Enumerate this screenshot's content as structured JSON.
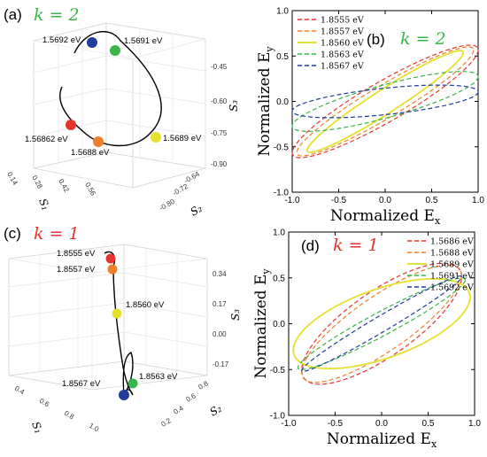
{
  "colors": {
    "red": "#e8332a",
    "orange": "#f07f2a",
    "yellow": "#e6e02f",
    "green": "#39b54a",
    "blue": "#1f3d9a",
    "k_green": "#39b54a",
    "k_red": "#e8332a"
  },
  "panels": [
    {
      "letter": "(a)",
      "k_label": "k = 2",
      "k_color": "#39b54a",
      "axis_labels": {
        "s1": "S₁",
        "s2": "S₂",
        "s3": "S₃"
      },
      "s3_ticks": [
        "-0.45",
        "-0.60",
        "-0.75",
        "-0.90"
      ],
      "s2_ticks": [
        "-0.64",
        "-0.72",
        "-0.80"
      ],
      "s1_ticks": [
        "0.14",
        "0.28",
        "0.42",
        "0.56"
      ],
      "points": [
        {
          "label": "1.5692 eV",
          "color": "blue"
        },
        {
          "label": "1.5691 eV",
          "color": "green"
        },
        {
          "label": "1.56862 eV",
          "color": "red"
        },
        {
          "label": "1.5688 eV",
          "color": "orange"
        },
        {
          "label": "1.5689 eV",
          "color": "yellow"
        }
      ]
    },
    {
      "letter": "(c)",
      "k_label": "k = 1",
      "k_color": "#e8332a",
      "axis_labels": {
        "s1": "S₁",
        "s2": "S₂",
        "s3": "S₃"
      },
      "s3_ticks": [
        "0.34",
        "0.17",
        "0.00",
        "-0.17"
      ],
      "s2_ticks": [
        "0.8",
        "0.6",
        "0.4",
        "0.2"
      ],
      "s1_ticks": [
        "0.4",
        "0.6",
        "0.8",
        "1.0"
      ],
      "points": [
        {
          "label": "1.8555 eV",
          "color": "red"
        },
        {
          "label": "1.8557 eV",
          "color": "orange"
        },
        {
          "label": "1.8560 eV",
          "color": "yellow"
        },
        {
          "label": "1.8563 eV",
          "color": "green"
        },
        {
          "label": "1.8567 eV",
          "color": "blue"
        }
      ]
    }
  ],
  "chart_data": [
    {
      "type": "line",
      "panel": "(b)",
      "k_label": "k = 2",
      "k_color": "#39b54a",
      "xlabel": "Normalized E",
      "xlabel_sub": "x",
      "ylabel": "Normalized E",
      "ylabel_sub": "y",
      "xlim": [
        -1.0,
        1.0
      ],
      "ylim": [
        -1.0,
        1.0
      ],
      "xticks": [
        "-1.0",
        "-0.5",
        "0.0",
        "0.5",
        "1.0"
      ],
      "yticks": [
        "1.0",
        "0.5",
        "0.0",
        "-0.5",
        "-1.0"
      ],
      "legend_position": "top-left",
      "series": [
        {
          "name": "1.8555 eV",
          "color": "red",
          "dash": true,
          "a": 1.0,
          "b": 0.62,
          "delta": 0.42
        },
        {
          "name": "1.8557 eV",
          "color": "orange",
          "dash": true,
          "a": 0.95,
          "b": 0.6,
          "delta": 0.35
        },
        {
          "name": "1.8560 eV",
          "color": "yellow",
          "dash": false,
          "a": 0.84,
          "b": 0.56,
          "delta": 0.28
        },
        {
          "name": "1.8563 eV",
          "color": "green",
          "dash": true,
          "a": 1.0,
          "b": 0.33,
          "delta": 0.6
        },
        {
          "name": "1.8567 eV",
          "color": "blue",
          "dash": true,
          "a": 1.0,
          "b": 0.18,
          "delta": 0.95
        }
      ]
    },
    {
      "type": "line",
      "panel": "(d)",
      "k_label": "k = 1",
      "k_color": "#e8332a",
      "xlabel": "Normalized E",
      "xlabel_sub": "x",
      "ylabel": "Normalized E",
      "ylabel_sub": "y",
      "xlim": [
        -1.0,
        1.0
      ],
      "ylim": [
        -1.0,
        1.0
      ],
      "xticks": [
        "-1.0",
        "-0.5",
        "0.0",
        "0.5",
        "1.0"
      ],
      "yticks": [
        "1.0",
        "0.5",
        "0.0",
        "-0.5",
        "-1.0"
      ],
      "legend_position": "top-right",
      "series": [
        {
          "name": "1.5686 eV",
          "color": "red",
          "dash": true,
          "a": 0.86,
          "b": 0.66,
          "delta": 2.45
        },
        {
          "name": "1.5688 eV",
          "color": "orange",
          "dash": true,
          "a": 0.86,
          "b": 0.64,
          "delta": 2.55
        },
        {
          "name": "1.5689 eV",
          "color": "yellow",
          "dash": false,
          "a": 0.95,
          "b": 0.49,
          "delta": 2.2
        },
        {
          "name": "1.5691 eV",
          "color": "green",
          "dash": true,
          "a": 0.9,
          "b": 0.5,
          "delta": 2.85
        },
        {
          "name": "1.5692 eV",
          "color": "blue",
          "dash": true,
          "a": 0.86,
          "b": 0.52,
          "delta": 2.95
        }
      ]
    }
  ]
}
